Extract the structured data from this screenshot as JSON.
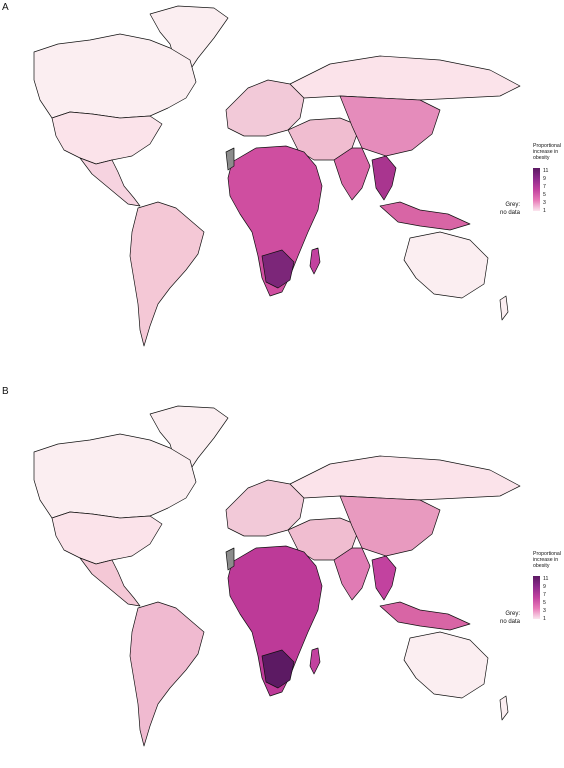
{
  "panels": [
    {
      "label": "A"
    },
    {
      "label": "B"
    }
  ],
  "legend": {
    "title": "Proportional increase in obesity",
    "ticks": [
      "11",
      "9",
      "7",
      "5",
      "3",
      "1"
    ],
    "grey_label": "Grey:",
    "grey_sub": "no data"
  },
  "colors": {
    "scale_low": "#fbe6ee",
    "scale_high": "#5c1a63",
    "no_data": "#8c8c8c",
    "border": "#111111"
  }
}
